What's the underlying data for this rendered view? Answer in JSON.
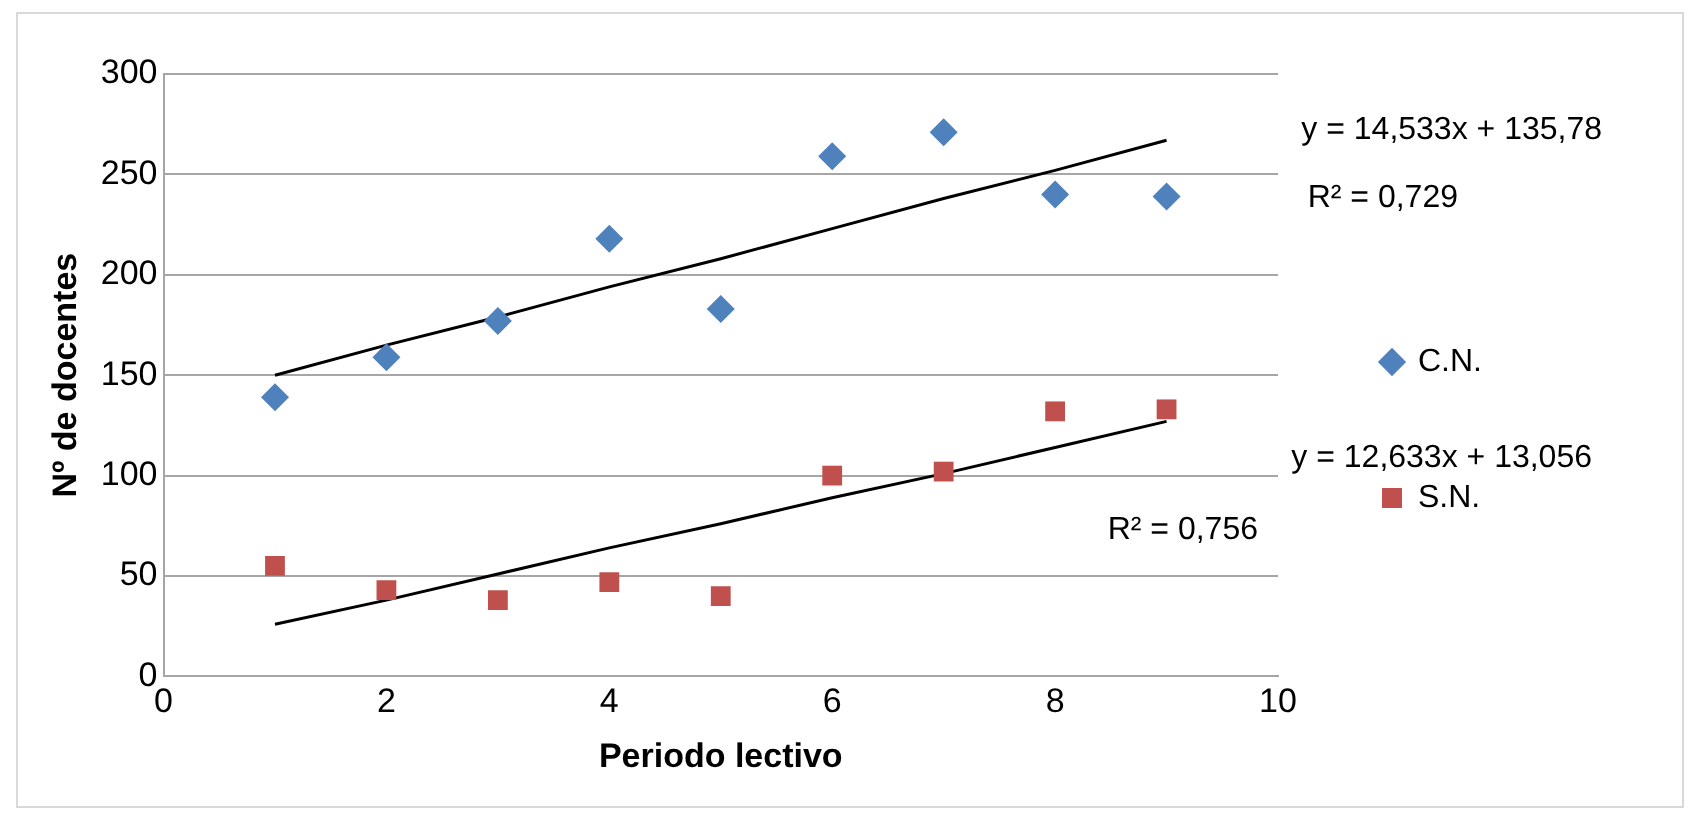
{
  "chart_data": {
    "type": "scatter",
    "xlabel": "Periodo lectivo",
    "ylabel": "Nº de docentes",
    "x": [
      1,
      2,
      3,
      4,
      5,
      6,
      7,
      8,
      9
    ],
    "series": [
      {
        "name": "C.N.",
        "color": "#4f81bd",
        "marker": "diamond",
        "values": [
          139,
          159,
          177,
          218,
          183,
          259,
          271,
          240,
          239
        ]
      },
      {
        "name": "S.N.",
        "color": "#c0504d",
        "marker": "square",
        "values": [
          55,
          43,
          38,
          47,
          40,
          100,
          102,
          132,
          133
        ]
      },
      {
        "type": "line",
        "color": "#000000",
        "marker": "none",
        "values": [
          150,
          165,
          179,
          194,
          208,
          223,
          238,
          252,
          267
        ]
      },
      {
        "type": "line",
        "color": "#000000",
        "marker": "none",
        "values": [
          26,
          38,
          51,
          64,
          76,
          89,
          101,
          114,
          127
        ]
      }
    ],
    "xlim": [
      0,
      10
    ],
    "xticks": [
      0,
      2,
      4,
      6,
      8,
      10
    ],
    "ylim": [
      0,
      300
    ],
    "yticks": [
      0,
      50,
      100,
      150,
      200,
      250,
      300
    ],
    "grid": "y",
    "legend": "right",
    "annotations": [
      "y = 14,533x + 135,78",
      "R² = 0,729",
      "y = 12,633x + 13,056",
      "R² = 0,756"
    ]
  }
}
